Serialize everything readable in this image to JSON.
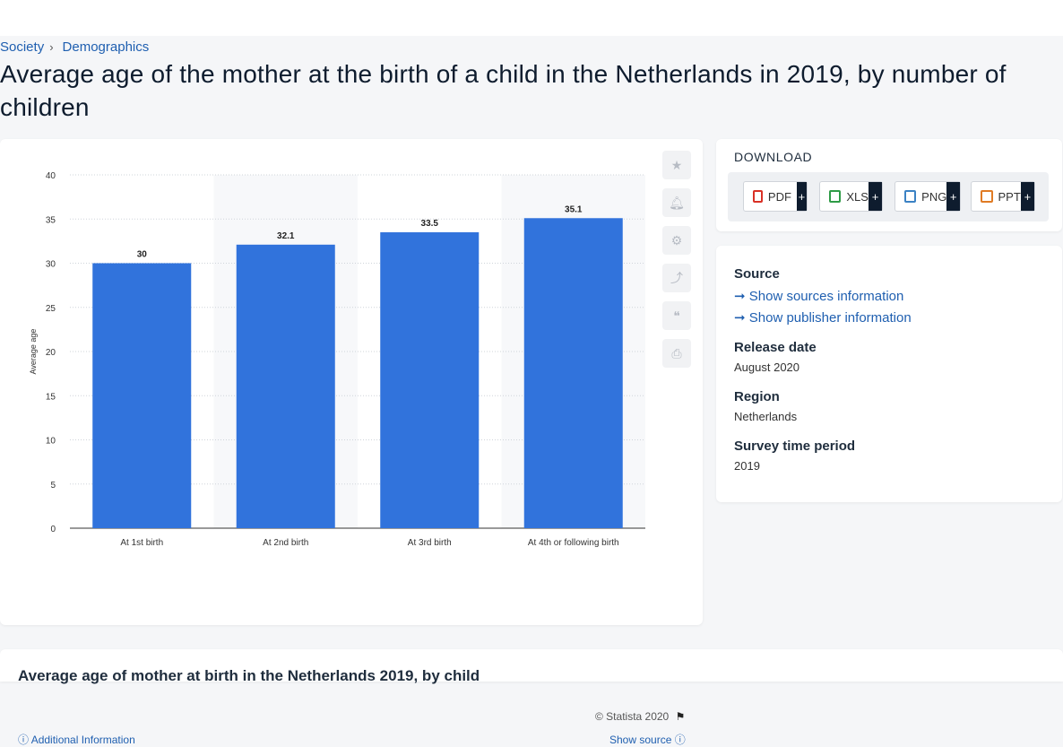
{
  "breadcrumb": [
    "Society",
    "Demographics"
  ],
  "title": "Average age of the mother at the birth of a child in the Netherlands in 2019, by number of children",
  "chart_data": {
    "type": "bar",
    "categories": [
      "At 1st birth",
      "At 2nd birth",
      "At 3rd birth",
      "At 4th or following birth"
    ],
    "values": [
      30,
      32.1,
      33.5,
      35.1
    ],
    "value_labels": [
      "30",
      "32.1",
      "33.5",
      "35.1"
    ],
    "ylabel": "Average age",
    "ylim": [
      0,
      40
    ],
    "yticks": [
      "0",
      "5",
      "10",
      "15",
      "20",
      "25",
      "30",
      "35",
      "40"
    ],
    "bar_color": "#3173dc",
    "grid": true
  },
  "chart_footer": {
    "copyright": "© Statista 2020",
    "additional_info": "Additional Information",
    "show_source": "Show source"
  },
  "tools": [
    "star-icon",
    "bell-icon",
    "gear-icon",
    "share-icon",
    "quote-icon",
    "print-icon"
  ],
  "download": {
    "title": "DOWNLOAD",
    "buttons": [
      {
        "label": "PDF",
        "color": "#d93025"
      },
      {
        "label": "XLS",
        "color": "#2e9b46"
      },
      {
        "label": "PNG",
        "color": "#3b82c4"
      },
      {
        "label": "PPT",
        "color": "#e07b24"
      }
    ],
    "plus": "+"
  },
  "meta": {
    "source_heading": "Source",
    "show_sources": "Show sources information",
    "show_publisher": "Show publisher information",
    "release_heading": "Release date",
    "release_value": "August 2020",
    "region_heading": "Region",
    "region_value": "Netherlands",
    "survey_heading": "Survey time period",
    "survey_value": "2019"
  },
  "bottom_heading": "Average age of mother at birth in the Netherlands 2019, by child"
}
